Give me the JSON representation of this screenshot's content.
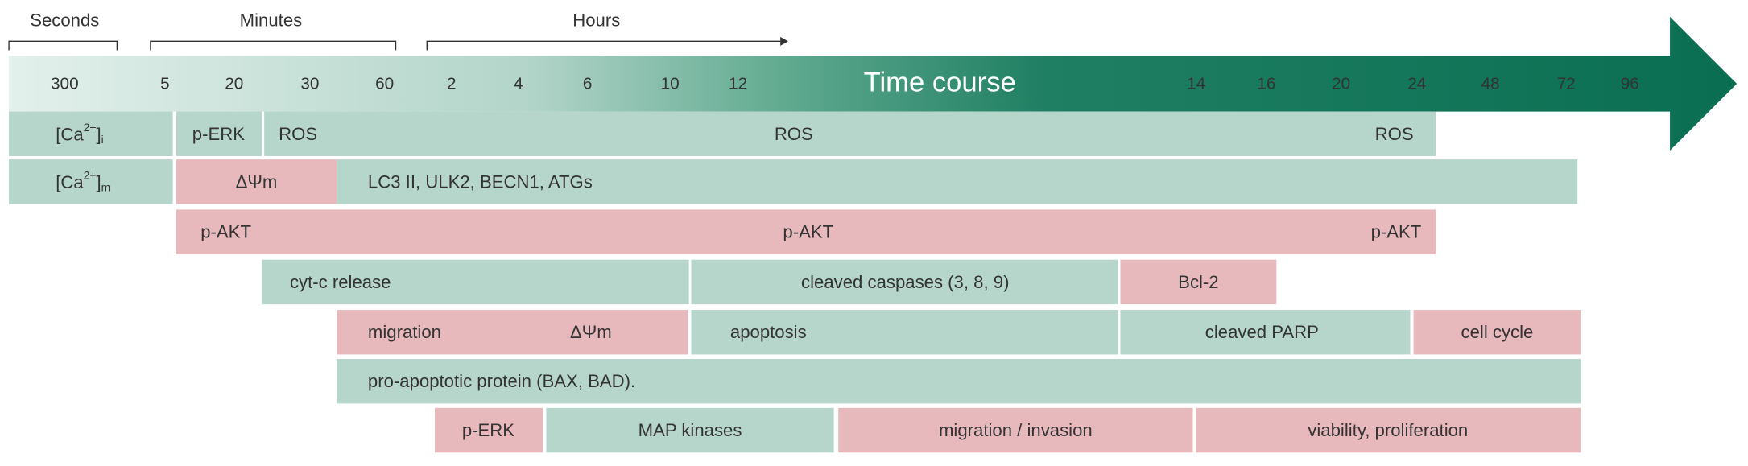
{
  "header": [
    "Seconds",
    "Minutes",
    "Hours"
  ],
  "arrow_label": "Time course",
  "ticks": [
    "300",
    "5",
    "20",
    "30",
    "60",
    "2",
    "4",
    "6",
    "10",
    "12",
    "14",
    "16",
    "20",
    "24",
    "48",
    "72",
    "96"
  ],
  "rows": [
    [
      {
        "color": "#b6d6cb",
        "labels": [
          {
            "main": "[Ca",
            "sup": "2+",
            "end": "]",
            "sub": "i"
          }
        ]
      },
      {
        "color": "#b6d6cb",
        "labels": [
          "p-ERK"
        ]
      },
      {
        "color": "#b6d6cb",
        "labels": [
          "ROS",
          "ROS",
          "ROS"
        ]
      }
    ],
    [
      {
        "color": "#b6d6cb",
        "labels": [
          {
            "main": "[Ca",
            "sup": "2+",
            "end": "]",
            "sub": "m"
          }
        ]
      },
      {
        "color": "#e8b9bc",
        "labels": [
          "ΔΨm"
        ]
      },
      {
        "color": "#b6d6cb",
        "labels": [
          "LC3 II, ULK2, BECN1, ATGs"
        ]
      }
    ],
    [
      {
        "color": "#e8b9bc",
        "labels": [
          "p-AKT",
          "p-AKT",
          "p-AKT"
        ]
      }
    ],
    [
      {
        "color": "#b6d6cb",
        "labels": [
          "cyt-c release"
        ]
      },
      {
        "color": "#b6d6cb",
        "labels": [
          "cleaved caspases (3, 8, 9)"
        ]
      },
      {
        "color": "#e8b9bc",
        "labels": [
          "Bcl-2"
        ]
      }
    ],
    [
      {
        "color": "#e8b9bc",
        "labels": [
          "migration",
          "ΔΨm"
        ]
      },
      {
        "color": "#b6d6cb",
        "labels": [
          "apoptosis"
        ]
      },
      {
        "color": "#b6d6cb",
        "labels": [
          "cleaved PARP"
        ]
      },
      {
        "color": "#e8b9bc",
        "labels": [
          "cell cycle"
        ]
      }
    ],
    [
      {
        "color": "#b6d6cb",
        "labels": [
          "pro-apoptotic protein (BAX, BAD)."
        ]
      }
    ],
    [
      {
        "color": "#e8b9bc",
        "labels": [
          "p-ERK"
        ]
      },
      {
        "color": "#b6d6cb",
        "labels": [
          "MAP kinases"
        ]
      },
      {
        "color": "#e8b9bc",
        "labels": [
          "migration / invasion"
        ]
      },
      {
        "color": "#e8b9bc",
        "labels": [
          "viability,  proliferation"
        ]
      }
    ]
  ]
}
